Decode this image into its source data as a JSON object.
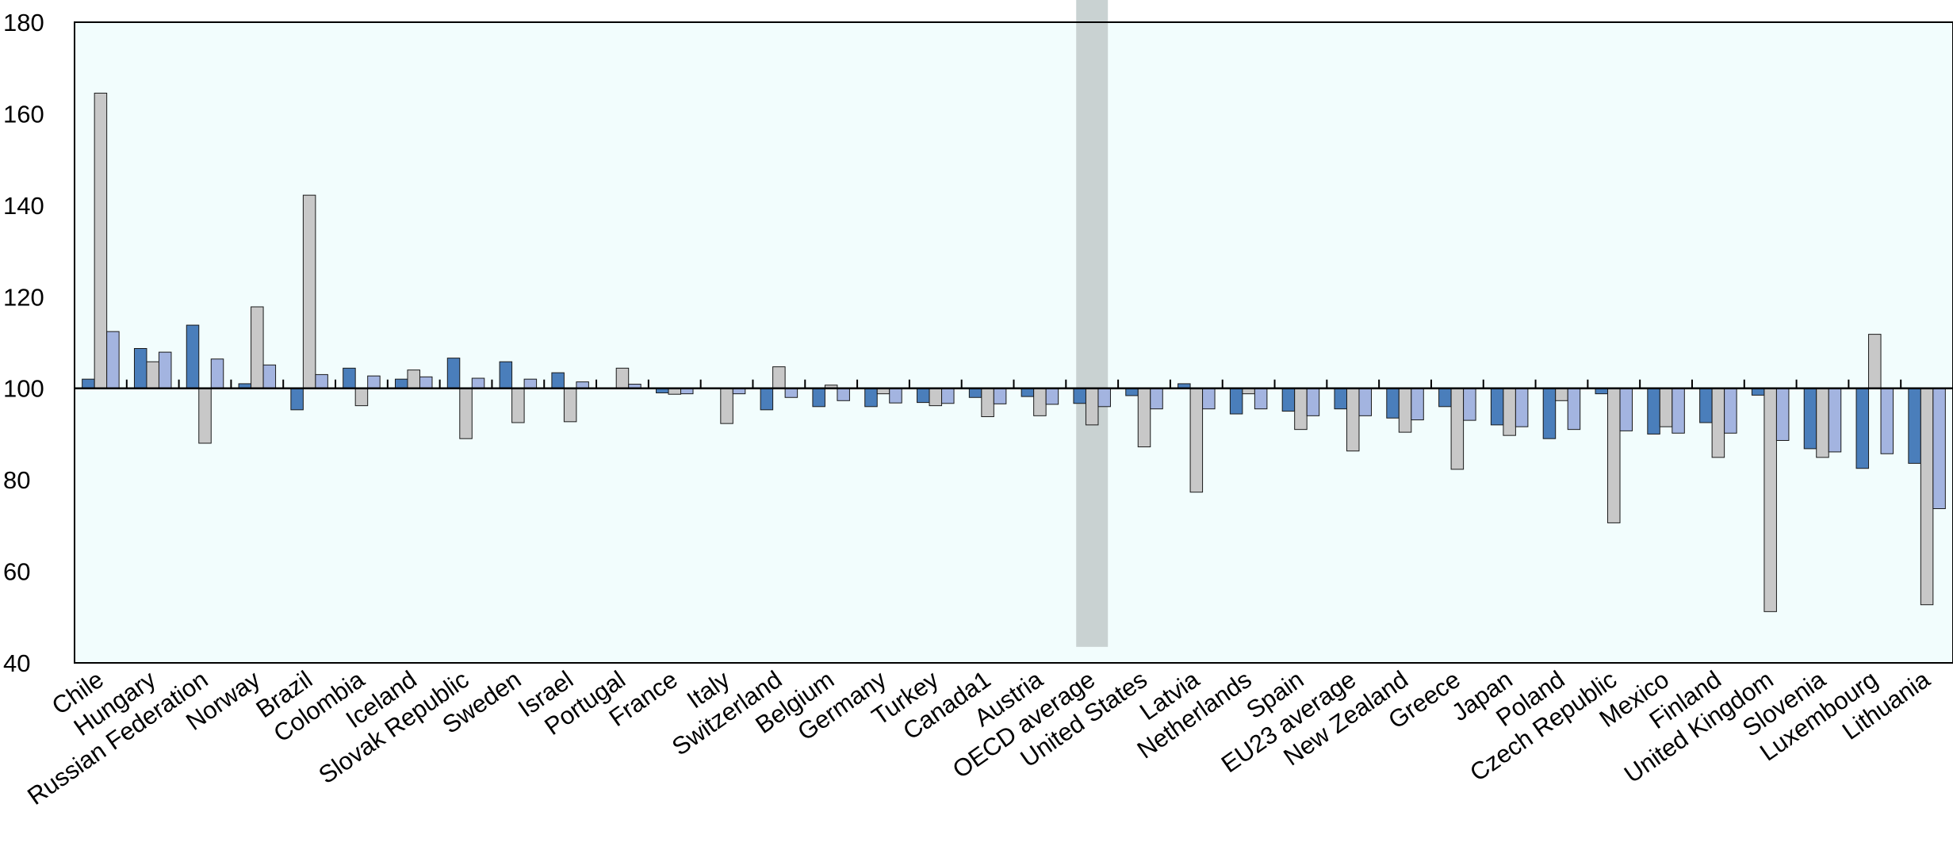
{
  "chart_data": {
    "type": "bar",
    "title": "",
    "xlabel": "",
    "ylabel": "",
    "ylim": [
      40,
      180
    ],
    "baseline": 100,
    "yticks": [
      40,
      60,
      80,
      100,
      120,
      140,
      160,
      180
    ],
    "grid": false,
    "highlight_category": "OECD average",
    "categories": [
      "Chile",
      "Hungary",
      "Russian Federation",
      "Norway",
      "Brazil",
      "Colombia",
      "Iceland",
      "Slovak Republic",
      "Sweden",
      "Israel",
      "Portugal",
      "France",
      "Italy",
      "Switzerland",
      "Belgium",
      "Germany",
      "Turkey",
      "Canada1",
      "Austria",
      "OECD average",
      "United States",
      "Latvia",
      "Netherlands",
      "Spain",
      "EU23 average",
      "New Zealand",
      "Greece",
      "Japan",
      "Poland",
      "Czech Republic",
      "Mexico",
      "Finland",
      "United Kingdom",
      "Slovenia",
      "Luxembourg",
      "Lithuania"
    ],
    "category_labels": [
      "Chile",
      "Hungary",
      "Russian Federation",
      "Norway",
      "Brazil",
      "Colombia",
      "Iceland",
      "Slovak Republic",
      "Sweden",
      "Israel",
      "Portugal",
      "France",
      "Italy",
      "Switzerland",
      "Belgium",
      "Germany",
      "Turkey",
      "Canada1",
      "Austria",
      "OECD average",
      "United States",
      "Latvia",
      "Netherlands",
      "Spain",
      "EU23 average",
      "New Zealand",
      "Greece",
      "Japan",
      "Poland",
      "Czech Republic",
      "Mexico",
      "Finland",
      "United Kingdom",
      "Slovenia",
      "Luxembourg",
      "Lithuania"
    ],
    "series": [
      {
        "color": "#4a7ebb",
        "values": [
          102,
          108.7,
          113.8,
          101,
          95.3,
          104.4,
          102,
          106.6,
          105.8,
          103.4,
          null,
          99,
          null,
          95.3,
          96,
          96,
          96.9,
          98,
          98.2,
          96.7,
          98.4,
          101,
          94.4,
          95,
          95.5,
          93.5,
          96,
          92,
          89,
          98.8,
          90,
          92.5,
          98.5,
          86.8,
          82.5,
          83.6
        ]
      },
      {
        "color": "#c8c8c8",
        "values": [
          164.5,
          105.8,
          88,
          117.8,
          142.2,
          96.2,
          104,
          89,
          92.5,
          92.7,
          104.4,
          98.7,
          92.3,
          104.7,
          100.7,
          98.8,
          96.2,
          93.8,
          94,
          92,
          87.2,
          77.3,
          98.8,
          91,
          86.3,
          90.4,
          82.3,
          89.7,
          97.3,
          70.6,
          91.6,
          84.9,
          51.2,
          84.9,
          111.8,
          52.7
        ]
      },
      {
        "color": "#a3b4e0",
        "values": [
          112.4,
          107.9,
          106.4,
          105.1,
          103,
          102.7,
          102.5,
          102.2,
          102,
          101.4,
          100.9,
          98.8,
          98.8,
          98,
          97.3,
          96.8,
          96.7,
          96.6,
          96.5,
          96,
          95.5,
          95.5,
          95.5,
          94,
          94,
          93.1,
          93,
          91.6,
          91,
          90.7,
          90.2,
          90.2,
          88.6,
          86.1,
          85.7,
          73.7
        ]
      }
    ]
  }
}
